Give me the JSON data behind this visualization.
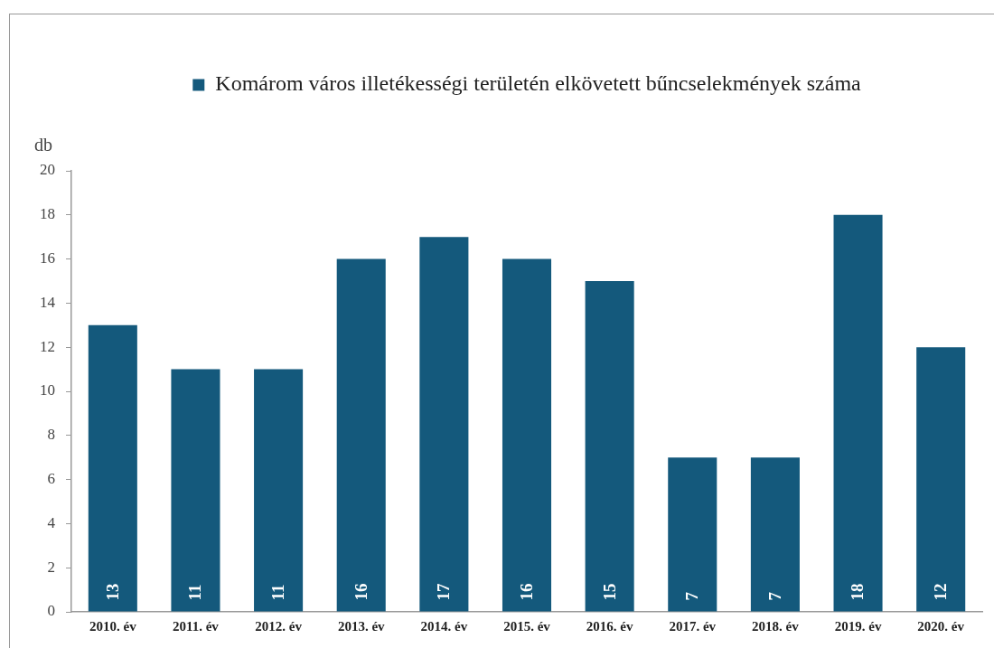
{
  "chart_data": {
    "type": "bar",
    "ylabel": "db",
    "categories": [
      "2010. év",
      "2011. év",
      "2012. év",
      "2013. év",
      "2014. év",
      "2015. év",
      "2016. év",
      "2017. év",
      "2018. év",
      "2019. év",
      "2020. év"
    ],
    "series": [
      {
        "name": "Komárom város illetékességi területén elkövetett bűncselekmények száma",
        "color": "#14597c",
        "values": [
          13,
          11,
          11,
          16,
          17,
          16,
          15,
          7,
          7,
          18,
          12
        ]
      }
    ],
    "ylim": [
      0,
      20
    ],
    "yticks": [
      0,
      2,
      4,
      6,
      8,
      10,
      12,
      14,
      16,
      18,
      20
    ],
    "grid": false,
    "legend": "top",
    "data_labels": true
  }
}
